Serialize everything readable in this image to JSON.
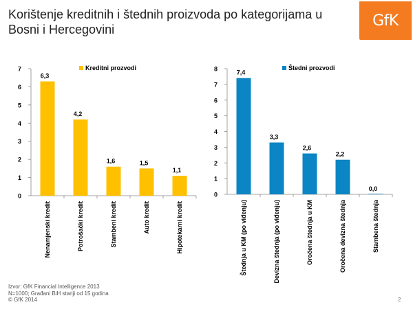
{
  "title": "Korištenje kreditnih i štednih proizvoda po kategorijama u Bosni i Hercegovini",
  "logo": {
    "text": "GfK",
    "color": "#f47b20"
  },
  "chart_data": [
    {
      "type": "bar",
      "title": "",
      "legend": "Kreditni prozvodi",
      "legend_position": "top",
      "color": "#ffc000",
      "categories": [
        "Nenamjenski kredit",
        "Potrošački kredit",
        "Stambeni kredit",
        "Auto kredit",
        "Hipotekarni kredit"
      ],
      "values": [
        6.3,
        4.2,
        1.6,
        1.5,
        1.1
      ],
      "labels": [
        "6,3",
        "4,2",
        "1,6",
        "1,5",
        "1,1"
      ],
      "ylim": [
        0,
        7
      ],
      "yticks": [
        0,
        1,
        2,
        3,
        4,
        5,
        6,
        7
      ]
    },
    {
      "type": "bar",
      "title": "",
      "legend": "Štedni prozvodi",
      "legend_position": "top",
      "color": "#0b85c3",
      "categories": [
        "Štednja u KM (po viđenju)",
        "Devizna štednja (po viđenju)",
        "Oročena štednja u KM",
        "Oročena devizna štednja",
        "Stambena štednja"
      ],
      "values": [
        7.4,
        3.3,
        2.6,
        2.2,
        0.0
      ],
      "labels": [
        "7,4",
        "3,3",
        "2,6",
        "2,2",
        "0,0"
      ],
      "ylim": [
        0,
        8
      ],
      "yticks": [
        0,
        1,
        2,
        3,
        4,
        5,
        6,
        7,
        8
      ]
    }
  ],
  "footer": {
    "line1": "Izvor: GfK Financial Intelligence 2013",
    "line2": "N=1000; Građani BiH stariji od 15 godina",
    "copyright": "© GfK 2014"
  },
  "page_number": "2"
}
